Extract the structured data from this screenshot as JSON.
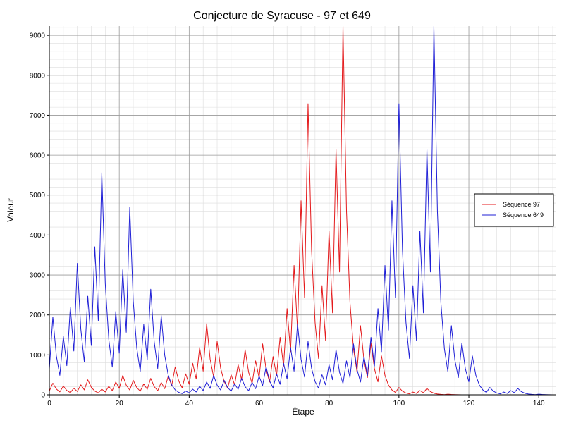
{
  "chart_data": {
    "type": "line",
    "title": "Conjecture de Syracuse - 97 et 649",
    "xlabel": "Étape",
    "ylabel": "Valeur",
    "xlim": [
      0,
      145
    ],
    "ylim": [
      0,
      9232
    ],
    "xticks": [
      0,
      20,
      40,
      60,
      80,
      100,
      120,
      140
    ],
    "yticks": [
      0,
      1000,
      2000,
      3000,
      4000,
      5000,
      6000,
      7000,
      8000,
      9000
    ],
    "grid": true,
    "legend_position": "right",
    "series": [
      {
        "name": "Séquence 97",
        "color": "#e41a1c",
        "values": [
          97,
          292,
          146,
          73,
          220,
          110,
          55,
          166,
          83,
          250,
          125,
          376,
          188,
          94,
          47,
          142,
          71,
          214,
          107,
          322,
          161,
          484,
          242,
          121,
          364,
          182,
          91,
          274,
          137,
          412,
          206,
          103,
          310,
          155,
          466,
          233,
          700,
          350,
          175,
          526,
          263,
          790,
          395,
          1186,
          593,
          1780,
          890,
          445,
          1336,
          668,
          334,
          167,
          502,
          251,
          754,
          377,
          1132,
          566,
          283,
          850,
          425,
          1276,
          638,
          319,
          958,
          479,
          1438,
          719,
          2158,
          1079,
          3238,
          1619,
          4858,
          2429,
          7288,
          3644,
          1822,
          911,
          2734,
          1367,
          4102,
          2051,
          6154,
          3077,
          9232,
          4616,
          2308,
          1154,
          577,
          1732,
          866,
          433,
          1300,
          650,
          325,
          976,
          488,
          244,
          122,
          61,
          184,
          92,
          46,
          23,
          70,
          35,
          106,
          53,
          160,
          80,
          40,
          20,
          10,
          5,
          16,
          8,
          4,
          2,
          1
        ]
      },
      {
        "name": "Séquence 649",
        "color": "#1f1fd6",
        "values": [
          649,
          1948,
          974,
          487,
          1462,
          731,
          2194,
          1097,
          3292,
          1646,
          823,
          2470,
          1235,
          3706,
          1853,
          5560,
          2780,
          1390,
          695,
          2086,
          1043,
          3130,
          1565,
          4696,
          2348,
          1174,
          587,
          1762,
          881,
          2644,
          1322,
          661,
          1984,
          992,
          496,
          248,
          124,
          62,
          31,
          94,
          47,
          142,
          71,
          214,
          107,
          322,
          161,
          484,
          242,
          121,
          364,
          182,
          91,
          274,
          137,
          412,
          206,
          103,
          310,
          155,
          466,
          233,
          700,
          350,
          175,
          526,
          263,
          790,
          395,
          1186,
          593,
          1780,
          890,
          445,
          1336,
          668,
          334,
          167,
          502,
          251,
          754,
          377,
          1132,
          566,
          283,
          850,
          425,
          1276,
          638,
          319,
          958,
          479,
          1438,
          719,
          2158,
          1079,
          3238,
          1619,
          4858,
          2429,
          7288,
          3644,
          1822,
          911,
          2734,
          1367,
          4102,
          2051,
          6154,
          3077,
          9232,
          4616,
          2308,
          1154,
          577,
          1732,
          866,
          433,
          1300,
          650,
          325,
          976,
          488,
          244,
          122,
          61,
          184,
          92,
          46,
          23,
          70,
          35,
          106,
          53,
          160,
          80,
          40,
          20,
          10,
          5,
          16,
          8,
          4,
          2,
          1
        ]
      }
    ]
  }
}
